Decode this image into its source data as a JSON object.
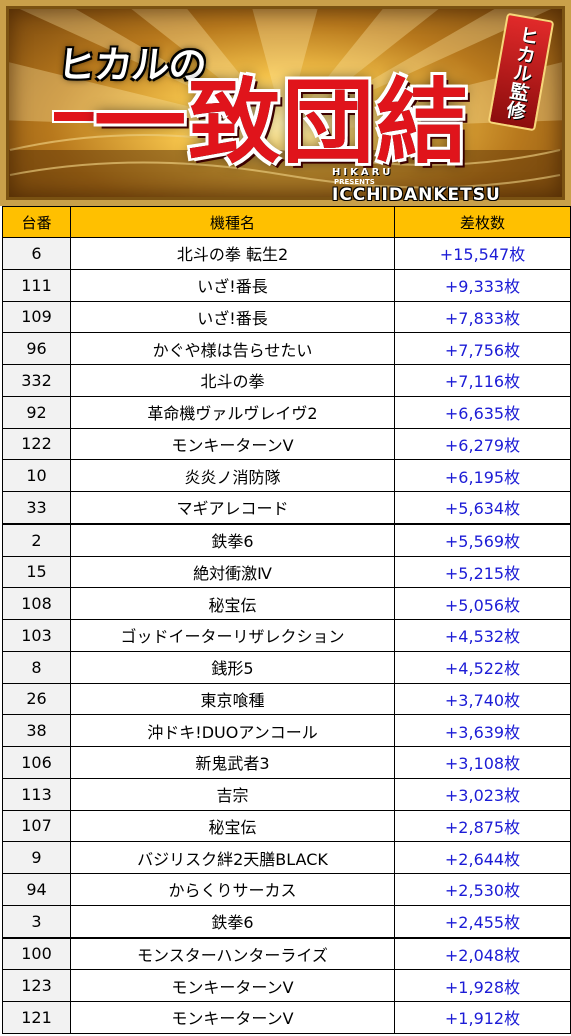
{
  "banner": {
    "top_title": "ヒカルの",
    "main_title": "一致団結",
    "kanshu": "ヒカル監修",
    "sub_hikaru": "HIKARU",
    "sub_presents": "PRESENTS",
    "sub_ichi": "ICCHIDANKETSU"
  },
  "table": {
    "headers": [
      "台番",
      "機種名",
      "差枚数"
    ],
    "rows": [
      {
        "num": "6",
        "machine": "北斗の拳 転生2",
        "diff": "+15,547枚"
      },
      {
        "num": "111",
        "machine": "いざ!番長",
        "diff": "+9,333枚"
      },
      {
        "num": "109",
        "machine": "いざ!番長",
        "diff": "+7,833枚"
      },
      {
        "num": "96",
        "machine": "かぐや様は告らせたい",
        "diff": "+7,756枚"
      },
      {
        "num": "332",
        "machine": "北斗の拳",
        "diff": "+7,116枚"
      },
      {
        "num": "92",
        "machine": "革命機ヴァルヴレイヴ2",
        "diff": "+6,635枚"
      },
      {
        "num": "122",
        "machine": "モンキーターンV",
        "diff": "+6,279枚"
      },
      {
        "num": "10",
        "machine": "炎炎ノ消防隊",
        "diff": "+6,195枚"
      },
      {
        "num": "33",
        "machine": "マギアレコード",
        "diff": "+5,634枚"
      },
      {
        "num": "2",
        "machine": "鉄拳6",
        "diff": "+5,569枚"
      },
      {
        "num": "15",
        "machine": "絶対衝激Ⅳ",
        "diff": "+5,215枚"
      },
      {
        "num": "108",
        "machine": "秘宝伝",
        "diff": "+5,056枚"
      },
      {
        "num": "103",
        "machine": "ゴッドイーターリザレクション",
        "diff": "+4,532枚"
      },
      {
        "num": "8",
        "machine": "銭形5",
        "diff": "+4,522枚"
      },
      {
        "num": "26",
        "machine": "東京喰種",
        "diff": "+3,740枚"
      },
      {
        "num": "38",
        "machine": "沖ドキ!DUOアンコール",
        "diff": "+3,639枚"
      },
      {
        "num": "106",
        "machine": "新鬼武者3",
        "diff": "+3,108枚"
      },
      {
        "num": "113",
        "machine": "吉宗",
        "diff": "+3,023枚"
      },
      {
        "num": "107",
        "machine": "秘宝伝",
        "diff": "+2,875枚"
      },
      {
        "num": "9",
        "machine": "バジリスク絆2天膳BLACK",
        "diff": "+2,644枚"
      },
      {
        "num": "94",
        "machine": "からくりサーカス",
        "diff": "+2,530枚"
      },
      {
        "num": "3",
        "machine": "鉄拳6",
        "diff": "+2,455枚"
      },
      {
        "num": "100",
        "machine": "モンスターハンターライズ",
        "diff": "+2,048枚"
      },
      {
        "num": "123",
        "machine": "モンキーターンV",
        "diff": "+1,928枚"
      },
      {
        "num": "121",
        "machine": "モンキーターンV",
        "diff": "+1,912枚"
      }
    ]
  },
  "colors": {
    "header_bg": "#ffc000",
    "number_col_bg": "#f2f2f2",
    "diff_text": "#1c1cd6",
    "title_red": "#e0141b"
  }
}
